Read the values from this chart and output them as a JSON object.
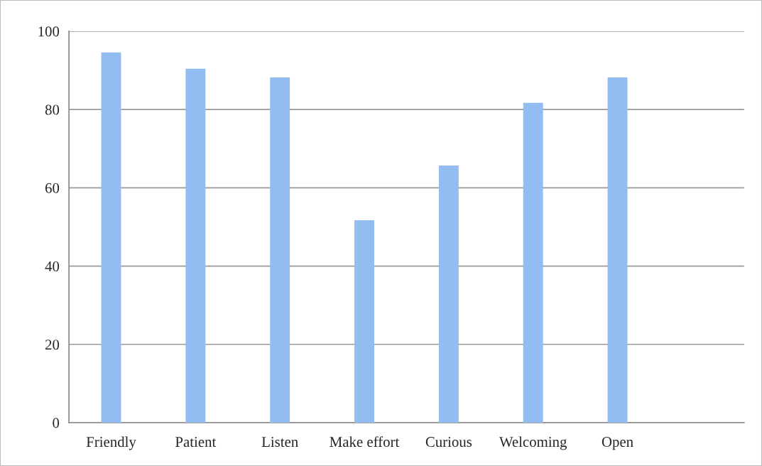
{
  "chart_data": {
    "type": "bar",
    "categories": [
      "Friendly",
      "Patient",
      "Listen",
      "Make effort",
      "Curious",
      "Welcoming",
      "Open",
      null
    ],
    "values": [
      94.6,
      90.4,
      88.2,
      51.7,
      65.7,
      81.7,
      88.2,
      null
    ],
    "color": "#93bdf0",
    "ylim": [
      0,
      100
    ],
    "yticks": [
      0,
      20,
      40,
      60,
      80,
      100
    ],
    "grid": "y"
  }
}
